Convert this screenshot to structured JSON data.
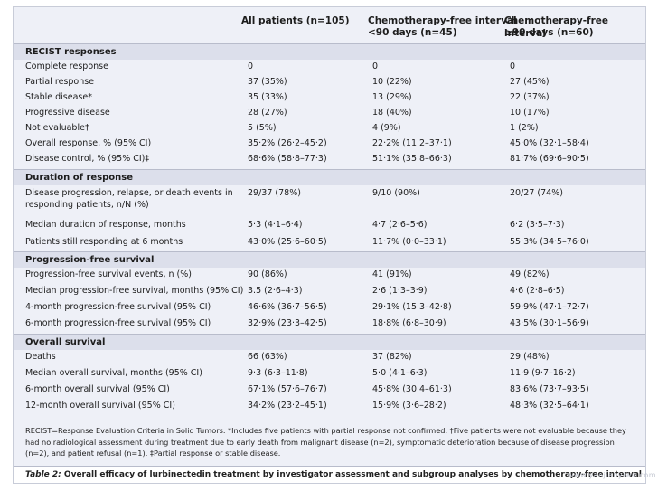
{
  "columns": {
    "all": "All patients (n=105)",
    "cfi_short_line1": "Chemotherapy-free interval",
    "cfi_short_line2": "<90 days (n=45)",
    "cfi_long_line1": "Chemotherapy-free interval",
    "cfi_long_line2": "≥90 days (n=60)"
  },
  "sections": {
    "recist": {
      "title": "RECIST responses",
      "rows": [
        {
          "label": "Complete response",
          "all": "0",
          "short": "0",
          "long": "0"
        },
        {
          "label": "Partial response",
          "all": "37 (35%)",
          "short": "10 (22%)",
          "long": "27 (45%)"
        },
        {
          "label": "Stable disease*",
          "all": "35 (33%)",
          "short": "13 (29%)",
          "long": "22 (37%)"
        },
        {
          "label": "Progressive disease",
          "all": "28 (27%)",
          "short": "18 (40%)",
          "long": "10 (17%)"
        },
        {
          "label": "Not evaluable†",
          "all": "5 (5%)",
          "short": "4 (9%)",
          "long": "1 (2%)"
        },
        {
          "label": "Overall response, % (95% CI)",
          "all": "35·2% (26·2–45·2)",
          "short": "22·2% (11·2–37·1)",
          "long": "45·0% (32·1–58·4)"
        },
        {
          "label": "Disease control, % (95% CI)‡",
          "all": "68·6% (58·8–77·3)",
          "short": "51·1% (35·8–66·3)",
          "long": "81·7% (69·6–90·5)"
        }
      ]
    },
    "duration": {
      "title": "Duration of response",
      "rows": [
        {
          "label": "Disease progression, relapse, or death events in responding patients, n/N (%)",
          "all": "29/37 (78%)",
          "short": "9/10 (90%)",
          "long": "20/27 (74%)"
        },
        {
          "label": "Median duration of response, months",
          "all": "5·3 (4·1–6·4)",
          "short": "4·7 (2·6–5·6)",
          "long": "6·2 (3·5–7·3)"
        },
        {
          "label": "Patients still responding at 6 months",
          "all": "43·0% (25·6–60·5)",
          "short": "11·7% (0·0–33·1)",
          "long": "55·3% (34·5–76·0)"
        }
      ]
    },
    "pfs": {
      "title": "Progression-free survival",
      "rows": [
        {
          "label": "Progression-free survival events, n (%)",
          "all": "90 (86%)",
          "short": "41 (91%)",
          "long": "49 (82%)"
        },
        {
          "label": "Median progression-free survival, months (95% CI)",
          "all": "3.5 (2·6–4·3)",
          "short": "2·6 (1·3–3·9)",
          "long": "4·6 (2·8–6·5)"
        },
        {
          "label": "4-month progression-free survival (95% CI)",
          "all": "46·6% (36·7–56·5)",
          "short": "29·1% (15·3–42·8)",
          "long": "59·9% (47·1–72·7)"
        },
        {
          "label": "6-month progression-free survival (95% CI)",
          "all": "32·9% (23·3–42·5)",
          "short": "18·8% (6·8–30·9)",
          "long": "43·5% (30·1–56·9)"
        }
      ]
    },
    "os": {
      "title": "Overall survival",
      "rows": [
        {
          "label": "Deaths",
          "all": "66 (63%)",
          "short": "37 (82%)",
          "long": "29 (48%)"
        },
        {
          "label": "Median overall survival, months (95% CI)",
          "all": "9·3 (6·3–11·8)",
          "short": "5·0 (4·1–6·3)",
          "long": "11·9 (9·7–16·2)"
        },
        {
          "label": "6-month overall survival (95% CI)",
          "all": "67·1% (57·6–76·7)",
          "short": "45·8% (30·4–61·3)",
          "long": "83·6% (73·7–93·5)"
        },
        {
          "label": "12-month overall survival (95% CI)",
          "all": "34·2% (23·2–45·1)",
          "short": "15·9% (3·6–28·2)",
          "long": "48·3% (32·5–64·1)"
        }
      ]
    }
  },
  "footnote": "RECIST=Response Evaluation Criteria in Solid Tumors. *Includes five patients with partial response not confirmed. †Five patients were not evaluable because they had no radiological assessment during treatment due to early death from malignant disease (n=2), symptomatic deterioration because of disease progression (n=2), and patient refusal (n=1). ‡Partial response or stable disease.",
  "caption": {
    "label": "Table 2:",
    "text": "Overall efficacy of lurbinectedin treatment by investigator assessment and subgroup analyses by chemotherapy-free interval"
  },
  "watermark": "www.yaojianyiwu.com"
}
